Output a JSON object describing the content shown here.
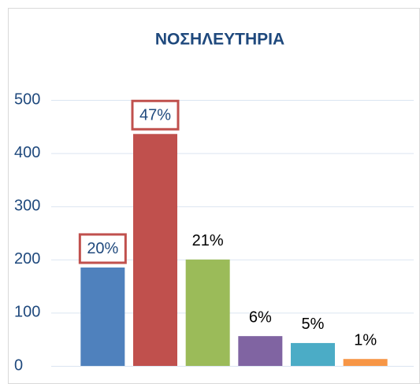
{
  "chart_data": {
    "type": "bar",
    "title": "ΝΟΣΗΛΕΥΤΗΡΙΑ",
    "categories": [
      null,
      null,
      null,
      null,
      null,
      null
    ],
    "values": [
      185,
      436,
      200,
      56,
      43,
      13
    ],
    "value_labels": [
      "20%",
      "47%",
      "21%",
      "6%",
      "5%",
      "1%"
    ],
    "colors": [
      "#4f81bd",
      "#c0504d",
      "#9bbb59",
      "#8064a2",
      "#4bacc6",
      "#f79646"
    ],
    "boxed_labels": [
      0,
      1
    ],
    "ylim": [
      0,
      500
    ],
    "yticks": [
      0,
      100,
      200,
      300,
      400,
      500
    ],
    "grid": true
  }
}
